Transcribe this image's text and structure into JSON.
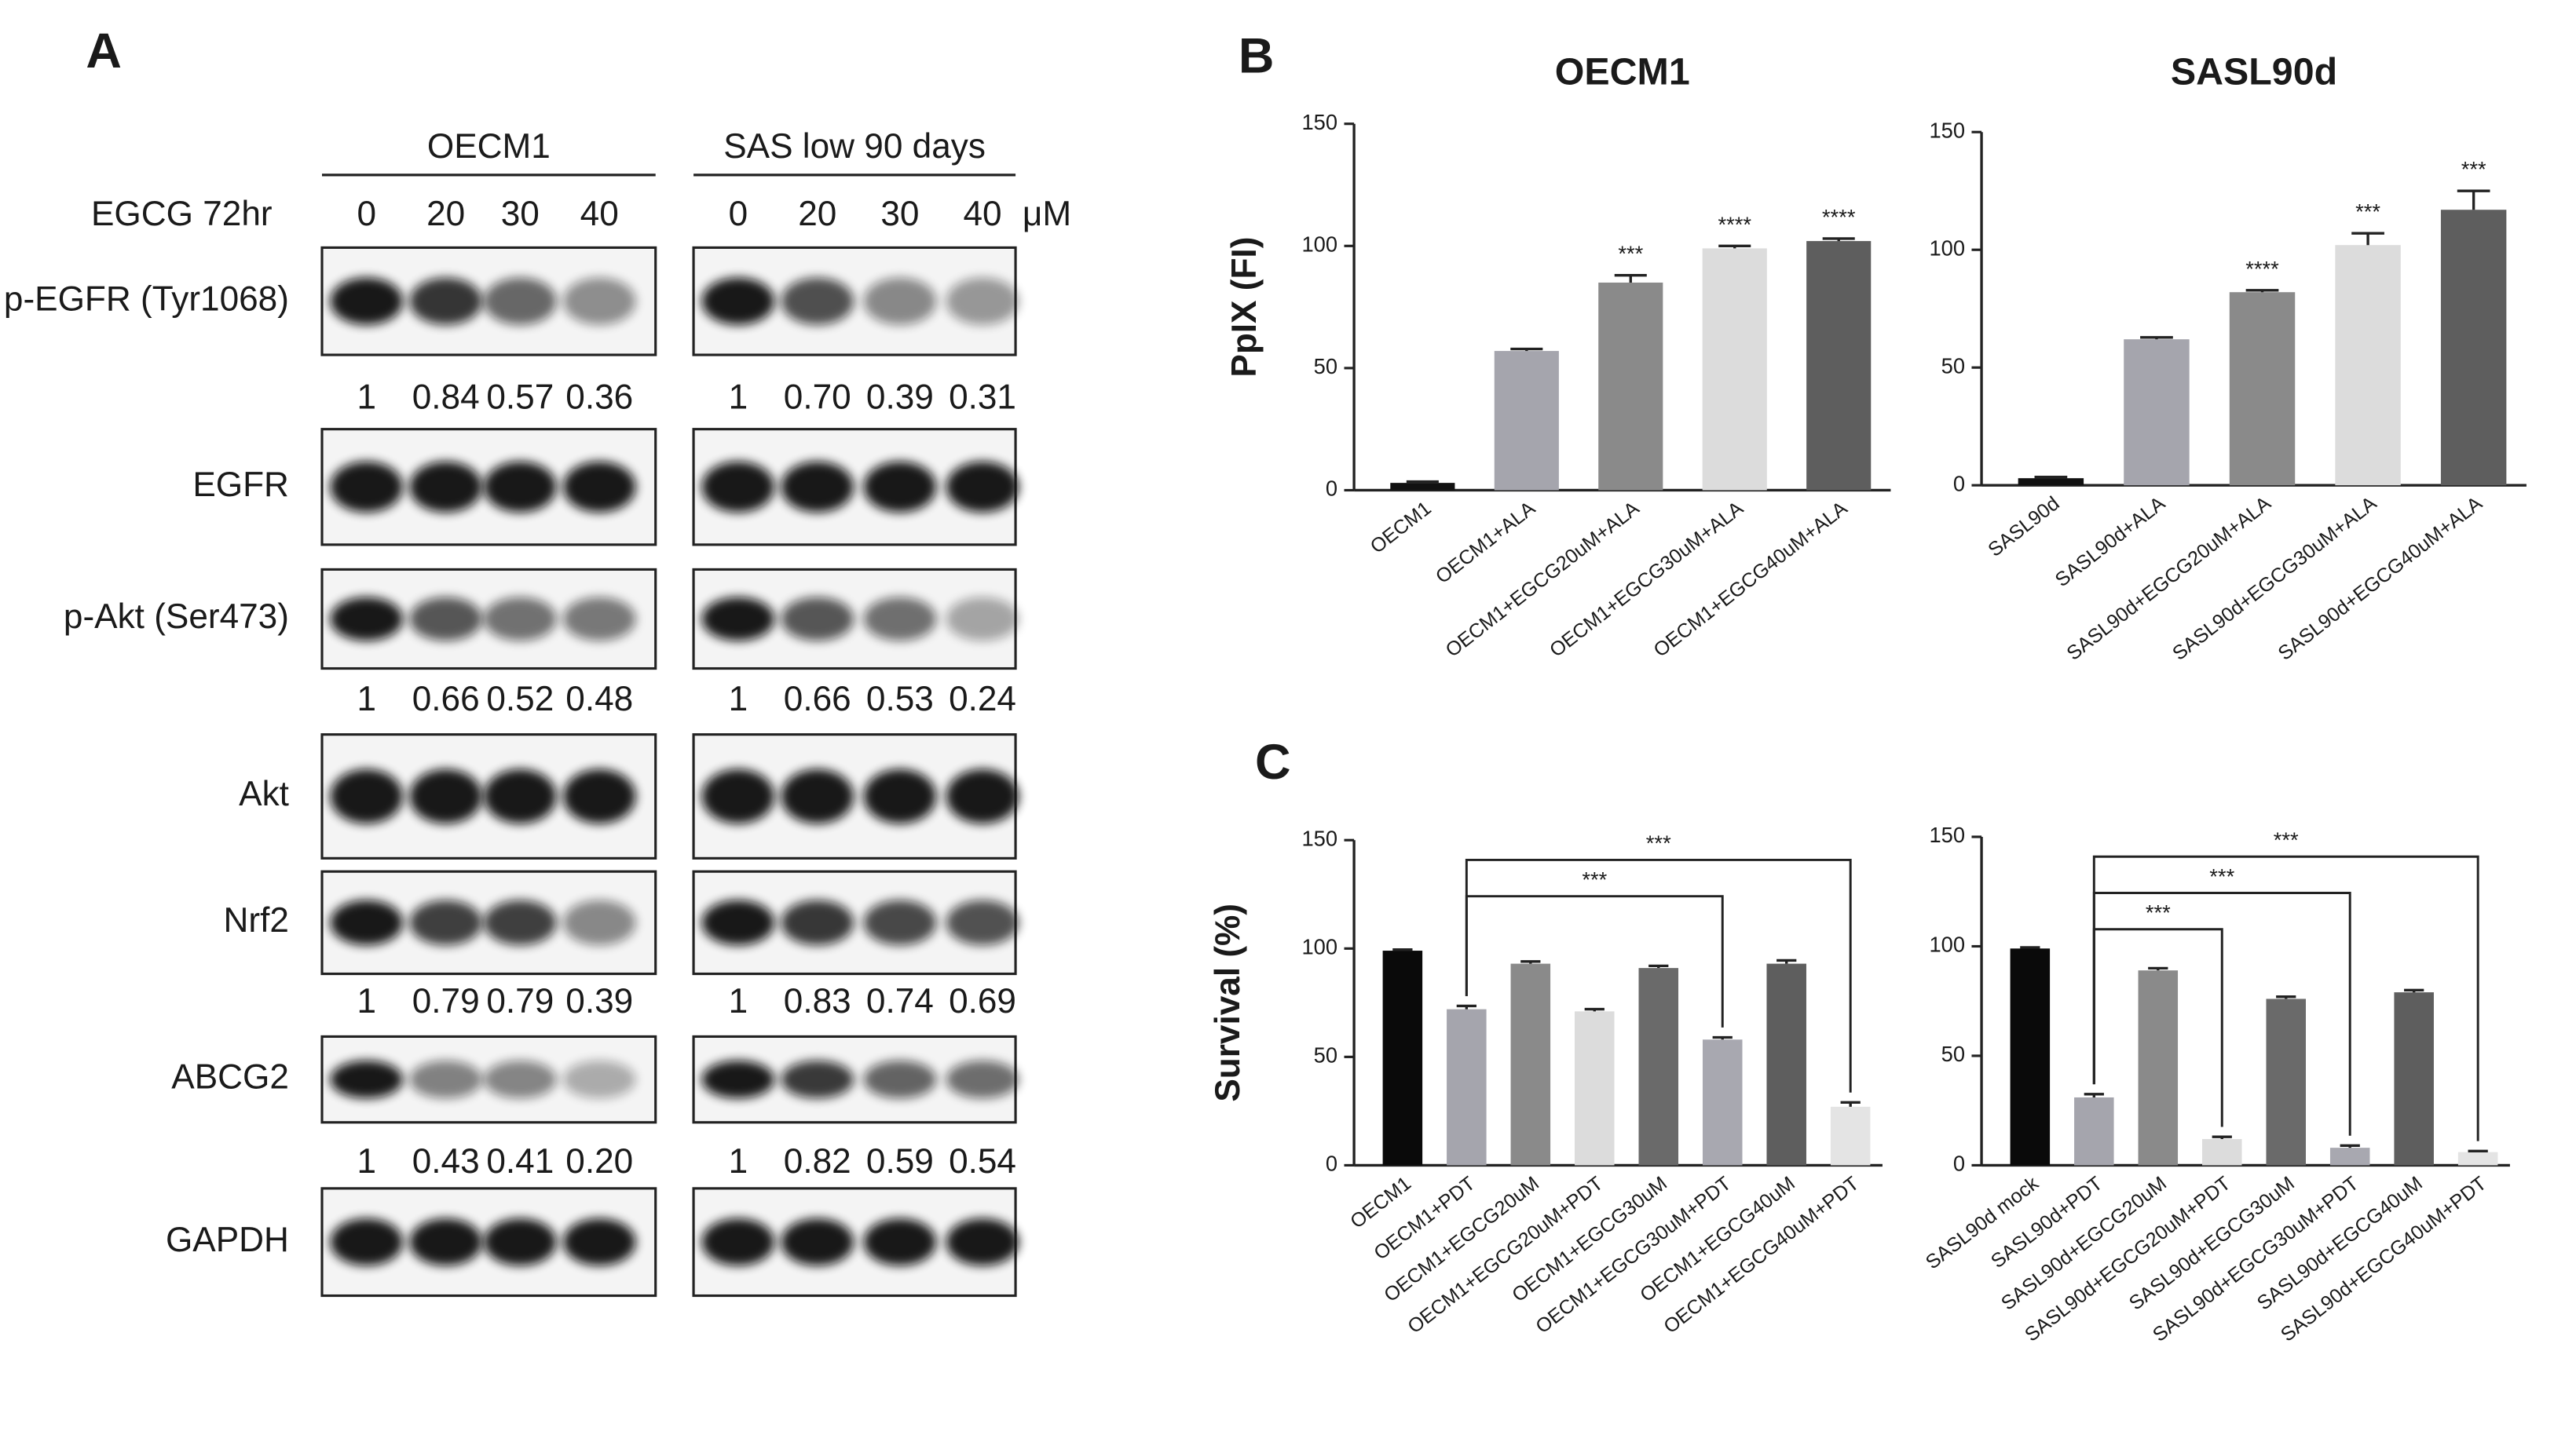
{
  "panel_labels": [
    "A",
    "B",
    "C"
  ],
  "blot": {
    "groups": [
      "OECM1",
      "SAS low 90 days"
    ],
    "treatment": "EGCG  72hr",
    "doses": [
      [
        "0",
        "20",
        "30",
        "40"
      ],
      [
        "0",
        "20",
        "30",
        "40"
      ]
    ],
    "unit": "μM",
    "rows": [
      {
        "protein": "p-EGFR (Tyr1068)",
        "quant": [
          [
            "1",
            "0.84",
            "0.57",
            "0.36"
          ],
          [
            "1",
            "0.70",
            "0.39",
            "0.31"
          ]
        ]
      },
      {
        "protein": "EGFR"
      },
      {
        "protein": "p-Akt (Ser473)",
        "quant": [
          [
            "1",
            "0.66",
            "0.52",
            "0.48"
          ],
          [
            "1",
            "0.66",
            "0.53",
            "0.24"
          ]
        ]
      },
      {
        "protein": "Akt"
      },
      {
        "protein": "Nrf2",
        "quant": [
          [
            "1",
            "0.79",
            "0.79",
            "0.39"
          ],
          [
            "1",
            "0.83",
            "0.74",
            "0.69"
          ]
        ]
      },
      {
        "protein": "ABCG2",
        "quant": [
          [
            "1",
            "0.43",
            "0.41",
            "0.20"
          ],
          [
            "1",
            "0.82",
            "0.59",
            "0.54"
          ]
        ]
      },
      {
        "protein": "GAPDH"
      }
    ]
  },
  "chart_data": [
    {
      "type": "bar",
      "title": "OECM1",
      "y_label": "PpIX (FI)",
      "categories": [
        "OECM1",
        "OECM1+ALA",
        "OECM1+EGCG20uM+ALA",
        "OECM1+EGCG30uM+ALA",
        "OECM1+EGCG40uM+ALA"
      ],
      "values": [
        3,
        57,
        85,
        99,
        102
      ],
      "errors": [
        0.5,
        0.8,
        3,
        1,
        1
      ],
      "colors": [
        "#111111",
        "#a5a5ad",
        "#8a8a8a",
        "#dcdcdc",
        "#5e5e5e"
      ],
      "annotations": [
        null,
        null,
        "***",
        "****",
        "****"
      ],
      "ylim": [
        0,
        150
      ],
      "yticks": [
        0,
        50,
        100,
        150
      ]
    },
    {
      "type": "bar",
      "title": "SASL90d",
      "categories": [
        "SASL90d",
        "SASL90d+ALA",
        "SASL90d+EGCG20uM+ALA",
        "SASL90d+EGCG30uM+ALA",
        "SASL90d+EGCG40uM+ALA"
      ],
      "values": [
        3,
        62,
        82,
        102,
        117
      ],
      "errors": [
        0.5,
        0.8,
        0.8,
        5,
        8
      ],
      "colors": [
        "#111111",
        "#a5a5ad",
        "#8a8a8a",
        "#dcdcdc",
        "#5e5e5e"
      ],
      "annotations": [
        null,
        null,
        "****",
        "***",
        "***"
      ],
      "ylim": [
        0,
        150
      ],
      "yticks": [
        0,
        50,
        100,
        150
      ]
    },
    {
      "type": "bar",
      "y_label": "Survival (%)",
      "categories": [
        "OECM1",
        "OECM1+PDT",
        "OECM1+EGCG20uM",
        "OECM1+EGCG20uM+PDT",
        "OECM1+EGCG30uM",
        "OECM1+EGCG30uM+PDT",
        "OECM1+EGCG40uM",
        "OECM1+EGCG40uM+PDT"
      ],
      "values": [
        99,
        72,
        93,
        71,
        91,
        58,
        93,
        27
      ],
      "errors": [
        0.5,
        1.5,
        1,
        1,
        1,
        1,
        1.5,
        2
      ],
      "colors": [
        "#0a0a0a",
        "#a5a5ad",
        "#8a8a8a",
        "#dcdcdc",
        "#6a6a6a",
        "#a8a8b0",
        "#5e5e5e",
        "#e4e4e4"
      ],
      "brackets": [
        {
          "from": 1,
          "to": 5,
          "label": "***"
        },
        {
          "from": 1,
          "to": 7,
          "label": "***"
        }
      ],
      "ylim": [
        0,
        150
      ],
      "yticks": [
        0,
        50,
        100,
        150
      ]
    },
    {
      "type": "bar",
      "categories": [
        "SASL90d mock",
        "SASL90d+PDT",
        "SASL90d+EGCG20uM",
        "SASL90d+EGCG20uM+PDT",
        "SASL90d+EGCG30uM",
        "SASL90d+EGCG30uM+PDT",
        "SASL90d+EGCG40uM",
        "SASL90d+EGCG40uM+PDT"
      ],
      "values": [
        99,
        31,
        89,
        12,
        76,
        8,
        79,
        6
      ],
      "errors": [
        0.5,
        1.5,
        1,
        1,
        1,
        1,
        1,
        0.5
      ],
      "colors": [
        "#0a0a0a",
        "#a5a5ad",
        "#8a8a8a",
        "#dcdcdc",
        "#6a6a6a",
        "#a8a8b0",
        "#5e5e5e",
        "#e4e4e4"
      ],
      "brackets": [
        {
          "from": 1,
          "to": 3,
          "label": "***"
        },
        {
          "from": 1,
          "to": 5,
          "label": "***"
        },
        {
          "from": 1,
          "to": 7,
          "label": "***"
        }
      ],
      "ylim": [
        0,
        150
      ],
      "yticks": [
        0,
        50,
        100,
        150
      ]
    }
  ]
}
